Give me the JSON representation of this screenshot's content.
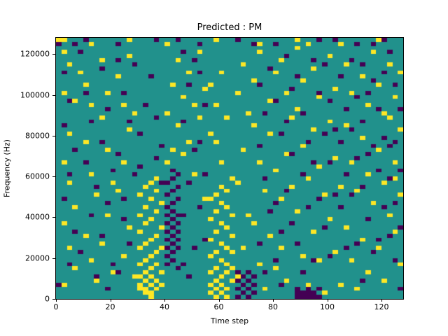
{
  "figure": {
    "title": "Predicted : PM",
    "xlabel": "Time step",
    "ylabel": "Frequency (Hz)"
  },
  "chart_data": {
    "type": "heatmap",
    "title": "Predicted : PM",
    "xlabel": "Time step",
    "ylabel": "Frequency (Hz)",
    "x_range": [
      0,
      128
    ],
    "y_range": [
      0,
      128000
    ],
    "x_ticks": [
      0,
      20,
      40,
      60,
      80,
      100,
      120
    ],
    "y_ticks": [
      0,
      20000,
      40000,
      60000,
      80000,
      100000,
      120000
    ],
    "grid": [
      64,
      64
    ],
    "legend": "none",
    "colors": {
      "background": "#21918c",
      "low": "#440154",
      "high": "#fde725"
    },
    "yellow_cells": [
      [
        0,
        63
      ],
      [
        1,
        60
      ],
      [
        2,
        57
      ],
      [
        1,
        50
      ],
      [
        3,
        48
      ],
      [
        2,
        40
      ],
      [
        1,
        33
      ],
      [
        2,
        28
      ],
      [
        3,
        22
      ],
      [
        1,
        18
      ],
      [
        2,
        12
      ],
      [
        3,
        7
      ],
      [
        1,
        3
      ],
      [
        4,
        55
      ],
      [
        5,
        52
      ],
      [
        6,
        47
      ],
      [
        5,
        38
      ],
      [
        6,
        30
      ],
      [
        7,
        25
      ],
      [
        5,
        15
      ],
      [
        6,
        9
      ],
      [
        7,
        4
      ],
      [
        8,
        58
      ],
      [
        9,
        50
      ],
      [
        8,
        44
      ],
      [
        9,
        36
      ],
      [
        10,
        28
      ],
      [
        9,
        20
      ],
      [
        8,
        13
      ],
      [
        10,
        6
      ],
      [
        11,
        54
      ],
      [
        12,
        47
      ],
      [
        13,
        41
      ],
      [
        12,
        33
      ],
      [
        11,
        26
      ],
      [
        13,
        17
      ],
      [
        12,
        10
      ],
      [
        14,
        5
      ],
      [
        14,
        45
      ],
      [
        13,
        59
      ],
      [
        1,
        63
      ],
      [
        6,
        62
      ],
      [
        13,
        63
      ],
      [
        15,
        2
      ],
      [
        15,
        3
      ],
      [
        15,
        5
      ],
      [
        15,
        8
      ],
      [
        15,
        12
      ],
      [
        15,
        16
      ],
      [
        15,
        20
      ],
      [
        15,
        25
      ],
      [
        16,
        1
      ],
      [
        16,
        2
      ],
      [
        16,
        4
      ],
      [
        16,
        6
      ],
      [
        16,
        9
      ],
      [
        16,
        13
      ],
      [
        16,
        18
      ],
      [
        16,
        22
      ],
      [
        16,
        27
      ],
      [
        17,
        0
      ],
      [
        17,
        1
      ],
      [
        17,
        3
      ],
      [
        17,
        5
      ],
      [
        17,
        7
      ],
      [
        17,
        10
      ],
      [
        17,
        14
      ],
      [
        17,
        19
      ],
      [
        17,
        24
      ],
      [
        17,
        28
      ],
      [
        18,
        2
      ],
      [
        18,
        4
      ],
      [
        18,
        8
      ],
      [
        18,
        11
      ],
      [
        18,
        15
      ],
      [
        18,
        21
      ],
      [
        18,
        26
      ],
      [
        18,
        29
      ],
      [
        19,
        3
      ],
      [
        19,
        6
      ],
      [
        19,
        12
      ],
      [
        19,
        17
      ],
      [
        19,
        23
      ],
      [
        20,
        33
      ],
      [
        21,
        36
      ],
      [
        20,
        62
      ],
      [
        20,
        45
      ],
      [
        21,
        52
      ],
      [
        22,
        58
      ],
      [
        23,
        49
      ],
      [
        22,
        42
      ],
      [
        24,
        55
      ],
      [
        25,
        47
      ],
      [
        24,
        38
      ],
      [
        26,
        60
      ],
      [
        27,
        51
      ],
      [
        26,
        44
      ],
      [
        23,
        35
      ],
      [
        25,
        30
      ],
      [
        27,
        24
      ],
      [
        28,
        1
      ],
      [
        28,
        3
      ],
      [
        28,
        6
      ],
      [
        28,
        10
      ],
      [
        28,
        14
      ],
      [
        28,
        19
      ],
      [
        28,
        24
      ],
      [
        28,
        40
      ],
      [
        28,
        52
      ],
      [
        29,
        0
      ],
      [
        29,
        2
      ],
      [
        29,
        4
      ],
      [
        29,
        7
      ],
      [
        29,
        11
      ],
      [
        29,
        16
      ],
      [
        29,
        21
      ],
      [
        29,
        25
      ],
      [
        29,
        38
      ],
      [
        29,
        47
      ],
      [
        29,
        63
      ],
      [
        30,
        1
      ],
      [
        30,
        3
      ],
      [
        30,
        5
      ],
      [
        30,
        9
      ],
      [
        30,
        13
      ],
      [
        30,
        18
      ],
      [
        30,
        23
      ],
      [
        30,
        27
      ],
      [
        30,
        33
      ],
      [
        30,
        55
      ],
      [
        31,
        0
      ],
      [
        31,
        2
      ],
      [
        31,
        6
      ],
      [
        31,
        8
      ],
      [
        31,
        12
      ],
      [
        31,
        17
      ],
      [
        31,
        22
      ],
      [
        31,
        26
      ],
      [
        31,
        44
      ],
      [
        32,
        4
      ],
      [
        32,
        7
      ],
      [
        32,
        11
      ],
      [
        32,
        15
      ],
      [
        32,
        20
      ],
      [
        32,
        29
      ],
      [
        33,
        50
      ],
      [
        34,
        57
      ],
      [
        35,
        45
      ],
      [
        34,
        36
      ],
      [
        33,
        28
      ],
      [
        35,
        20
      ],
      [
        34,
        12
      ],
      [
        33,
        5
      ],
      [
        36,
        53
      ],
      [
        37,
        60
      ],
      [
        36,
        42
      ],
      [
        37,
        33
      ],
      [
        38,
        26
      ],
      [
        36,
        18
      ],
      [
        37,
        8
      ],
      [
        38,
        2
      ],
      [
        37,
        62
      ],
      [
        39,
        48
      ],
      [
        40,
        55
      ],
      [
        39,
        40
      ],
      [
        40,
        31
      ],
      [
        41,
        24
      ],
      [
        39,
        15
      ],
      [
        40,
        7
      ],
      [
        41,
        58
      ],
      [
        42,
        50
      ],
      [
        43,
        44
      ],
      [
        42,
        35
      ],
      [
        43,
        27
      ],
      [
        41,
        12
      ],
      [
        42,
        4
      ],
      [
        44,
        61
      ],
      [
        44,
        63
      ],
      [
        45,
        53
      ],
      [
        44,
        46
      ],
      [
        45,
        37
      ],
      [
        46,
        29
      ],
      [
        44,
        21
      ],
      [
        45,
        10
      ],
      [
        46,
        3
      ],
      [
        46,
        62
      ],
      [
        47,
        56
      ],
      [
        48,
        49
      ],
      [
        47,
        41
      ],
      [
        48,
        32
      ],
      [
        49,
        25
      ],
      [
        47,
        16
      ],
      [
        48,
        9
      ],
      [
        49,
        1
      ],
      [
        50,
        59
      ],
      [
        51,
        51
      ],
      [
        50,
        43
      ],
      [
        51,
        34
      ],
      [
        52,
        27
      ],
      [
        50,
        19
      ],
      [
        51,
        11
      ],
      [
        52,
        3
      ],
      [
        52,
        62
      ],
      [
        53,
        57
      ],
      [
        54,
        50
      ],
      [
        53,
        42
      ],
      [
        54,
        33
      ],
      [
        55,
        26
      ],
      [
        53,
        17
      ],
      [
        54,
        9
      ],
      [
        55,
        2
      ],
      [
        56,
        54
      ],
      [
        57,
        47
      ],
      [
        56,
        39
      ],
      [
        57,
        30
      ],
      [
        58,
        23
      ],
      [
        56,
        14
      ],
      [
        57,
        6
      ],
      [
        58,
        60
      ],
      [
        59,
        52
      ],
      [
        59,
        63
      ],
      [
        60,
        45
      ],
      [
        59,
        36
      ],
      [
        60,
        28
      ],
      [
        61,
        20
      ],
      [
        59,
        12
      ],
      [
        60,
        4
      ],
      [
        61,
        57
      ],
      [
        62,
        49
      ],
      [
        63,
        41
      ],
      [
        62,
        33
      ],
      [
        63,
        25
      ],
      [
        61,
        44
      ],
      [
        62,
        16
      ],
      [
        63,
        8
      ],
      [
        62,
        29
      ],
      [
        63,
        55
      ]
    ],
    "purple_cells": [
      [
        20,
        8
      ],
      [
        20,
        10
      ],
      [
        20,
        12
      ],
      [
        20,
        14
      ],
      [
        20,
        16
      ],
      [
        20,
        18
      ],
      [
        20,
        20
      ],
      [
        20,
        22
      ],
      [
        20,
        25
      ],
      [
        20,
        28
      ],
      [
        21,
        9
      ],
      [
        21,
        11
      ],
      [
        21,
        13
      ],
      [
        21,
        15
      ],
      [
        21,
        17
      ],
      [
        21,
        19
      ],
      [
        21,
        21
      ],
      [
        21,
        23
      ],
      [
        21,
        26
      ],
      [
        21,
        29
      ],
      [
        21,
        31
      ],
      [
        22,
        7
      ],
      [
        22,
        12
      ],
      [
        22,
        14
      ],
      [
        22,
        16
      ],
      [
        22,
        18
      ],
      [
        22,
        20
      ],
      [
        22,
        24
      ],
      [
        22,
        27
      ],
      [
        22,
        30
      ],
      [
        33,
        0
      ],
      [
        33,
        2
      ],
      [
        33,
        4
      ],
      [
        33,
        6
      ],
      [
        34,
        1
      ],
      [
        34,
        3
      ],
      [
        34,
        5
      ],
      [
        35,
        0
      ],
      [
        35,
        2
      ],
      [
        35,
        4
      ],
      [
        35,
        6
      ],
      [
        36,
        1
      ],
      [
        36,
        3
      ],
      [
        36,
        5
      ],
      [
        44,
        0
      ],
      [
        44,
        1
      ],
      [
        44,
        2
      ],
      [
        45,
        0
      ],
      [
        45,
        1
      ],
      [
        46,
        0
      ],
      [
        46,
        1
      ],
      [
        46,
        2
      ],
      [
        47,
        0
      ],
      [
        47,
        1
      ],
      [
        48,
        0
      ],
      [
        48,
        2
      ],
      [
        0,
        62
      ],
      [
        1,
        55
      ],
      [
        2,
        48
      ],
      [
        1,
        42
      ],
      [
        3,
        36
      ],
      [
        2,
        30
      ],
      [
        1,
        24
      ],
      [
        3,
        16
      ],
      [
        2,
        8
      ],
      [
        0,
        3
      ],
      [
        3,
        62
      ],
      [
        4,
        60
      ],
      [
        5,
        50
      ],
      [
        5,
        63
      ],
      [
        6,
        43
      ],
      [
        5,
        33
      ],
      [
        7,
        27
      ],
      [
        6,
        20
      ],
      [
        4,
        11
      ],
      [
        7,
        5
      ],
      [
        8,
        56
      ],
      [
        9,
        46
      ],
      [
        8,
        38
      ],
      [
        10,
        31
      ],
      [
        9,
        23
      ],
      [
        8,
        15
      ],
      [
        10,
        8
      ],
      [
        9,
        2
      ],
      [
        11,
        58
      ],
      [
        11,
        62
      ],
      [
        12,
        50
      ],
      [
        13,
        43
      ],
      [
        11,
        35
      ],
      [
        12,
        24
      ],
      [
        13,
        13
      ],
      [
        11,
        6
      ],
      [
        14,
        57
      ],
      [
        14,
        30
      ],
      [
        12,
        19
      ],
      [
        15,
        40
      ],
      [
        16,
        47
      ],
      [
        17,
        54
      ],
      [
        18,
        44
      ],
      [
        19,
        37
      ],
      [
        15,
        32
      ],
      [
        18,
        34
      ],
      [
        19,
        28
      ],
      [
        18,
        63
      ],
      [
        23,
        60
      ],
      [
        24,
        52
      ],
      [
        23,
        43
      ],
      [
        25,
        36
      ],
      [
        24,
        28
      ],
      [
        23,
        20
      ],
      [
        25,
        12
      ],
      [
        24,
        5
      ],
      [
        22,
        63
      ],
      [
        26,
        55
      ],
      [
        26,
        62
      ],
      [
        27,
        47
      ],
      [
        26,
        38
      ],
      [
        27,
        30
      ],
      [
        26,
        22
      ],
      [
        27,
        14
      ],
      [
        25,
        58
      ],
      [
        23,
        8
      ],
      [
        33,
        63
      ],
      [
        36,
        62
      ],
      [
        37,
        52
      ],
      [
        38,
        45
      ],
      [
        37,
        37
      ],
      [
        38,
        29
      ],
      [
        39,
        21
      ],
      [
        37,
        13
      ],
      [
        38,
        6
      ],
      [
        39,
        56
      ],
      [
        40,
        48
      ],
      [
        40,
        62
      ],
      [
        41,
        40
      ],
      [
        40,
        23
      ],
      [
        41,
        16
      ],
      [
        40,
        9
      ],
      [
        42,
        59
      ],
      [
        43,
        51
      ],
      [
        42,
        43
      ],
      [
        43,
        35
      ],
      [
        42,
        26
      ],
      [
        43,
        18
      ],
      [
        41,
        3
      ],
      [
        44,
        54
      ],
      [
        45,
        45
      ],
      [
        46,
        38
      ],
      [
        45,
        30
      ],
      [
        44,
        13
      ],
      [
        46,
        22
      ],
      [
        45,
        6
      ],
      [
        47,
        58
      ],
      [
        48,
        50
      ],
      [
        48,
        63
      ],
      [
        47,
        33
      ],
      [
        49,
        40
      ],
      [
        48,
        24
      ],
      [
        49,
        17
      ],
      [
        47,
        9
      ],
      [
        49,
        57
      ],
      [
        50,
        48
      ],
      [
        51,
        41
      ],
      [
        50,
        33
      ],
      [
        51,
        25
      ],
      [
        50,
        10
      ],
      [
        51,
        63
      ],
      [
        52,
        54
      ],
      [
        53,
        46
      ],
      [
        52,
        38
      ],
      [
        53,
        30
      ],
      [
        52,
        22
      ],
      [
        53,
        12
      ],
      [
        54,
        58
      ],
      [
        55,
        49
      ],
      [
        55,
        62
      ],
      [
        54,
        41
      ],
      [
        55,
        34
      ],
      [
        54,
        25
      ],
      [
        55,
        13
      ],
      [
        56,
        57
      ],
      [
        57,
        50
      ],
      [
        56,
        43
      ],
      [
        57,
        35
      ],
      [
        56,
        27
      ],
      [
        57,
        19
      ],
      [
        58,
        11
      ],
      [
        56,
        4
      ],
      [
        58,
        53
      ],
      [
        58,
        62
      ],
      [
        59,
        46
      ],
      [
        60,
        39
      ],
      [
        59,
        31
      ],
      [
        60,
        22
      ],
      [
        59,
        14
      ],
      [
        60,
        55
      ],
      [
        60,
        63
      ],
      [
        61,
        60
      ],
      [
        62,
        52
      ],
      [
        61,
        37
      ],
      [
        63,
        46
      ],
      [
        62,
        38
      ],
      [
        61,
        29
      ],
      [
        63,
        31
      ],
      [
        62,
        23
      ],
      [
        61,
        15
      ],
      [
        63,
        17
      ],
      [
        62,
        9
      ],
      [
        63,
        2
      ],
      [
        58,
        37
      ]
    ]
  }
}
